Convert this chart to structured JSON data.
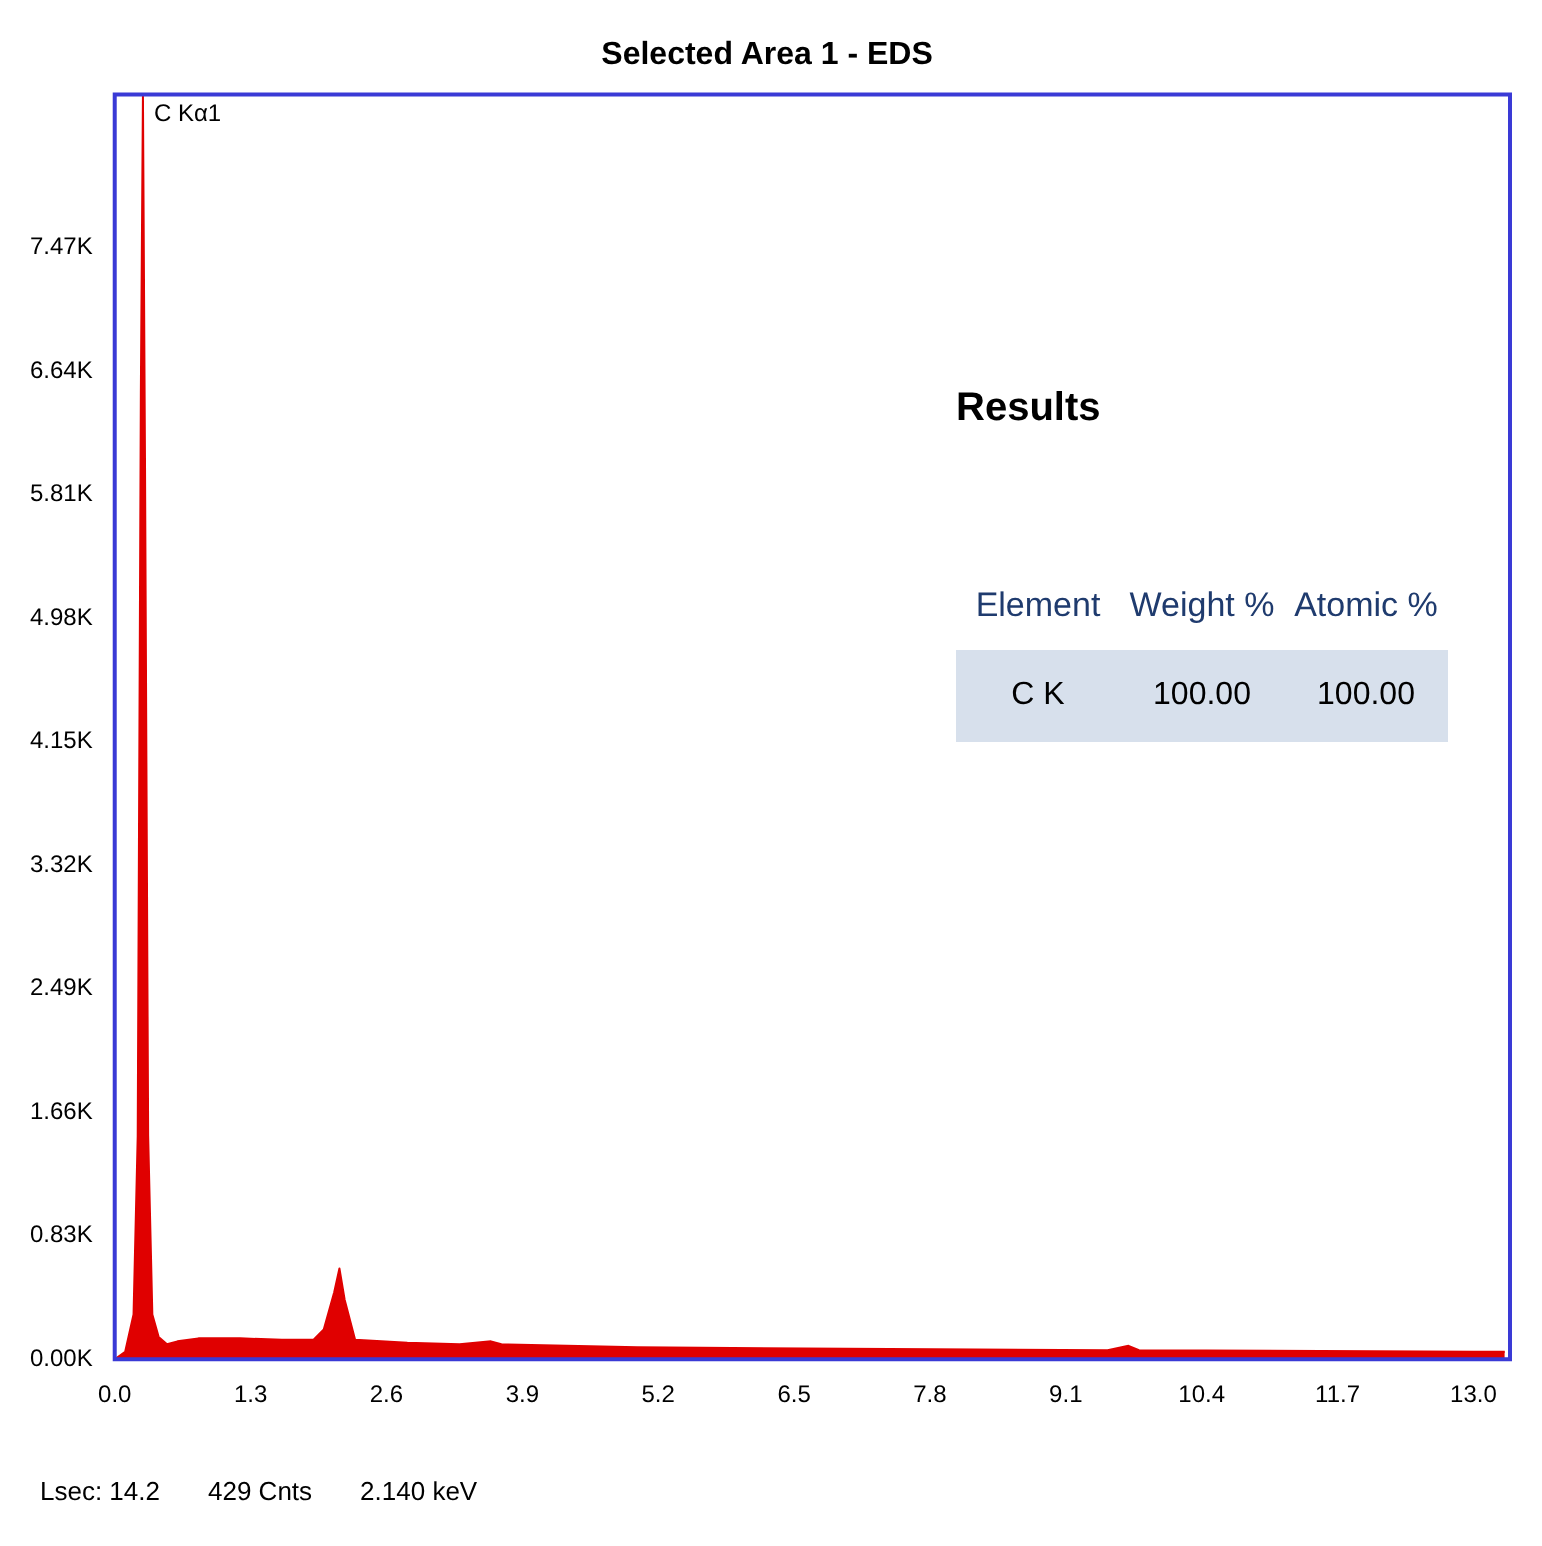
{
  "chart_data": {
    "type": "area",
    "title": "Selected Area 1 - EDS",
    "x": [
      0,
      0.1,
      0.18,
      0.22,
      0.25,
      0.27,
      0.29,
      0.32,
      0.36,
      0.42,
      0.5,
      0.6,
      0.8,
      1.2,
      1.6,
      1.9,
      2.0,
      2.1,
      2.15,
      2.2,
      2.3,
      2.8,
      3.3,
      3.6,
      3.7,
      5,
      7,
      9.5,
      9.7,
      9.8,
      13,
      13.3
    ],
    "series": [
      {
        "color": "#e00000",
        "values": [
          0,
          0.05,
          0.3,
          1.5,
          6.5,
          8.5,
          6.0,
          1.5,
          0.3,
          0.15,
          0.1,
          0.12,
          0.14,
          0.14,
          0.13,
          0.13,
          0.2,
          0.45,
          0.61,
          0.4,
          0.13,
          0.11,
          0.1,
          0.12,
          0.1,
          0.08,
          0.07,
          0.06,
          0.09,
          0.06,
          0.05,
          0.05
        ]
      }
    ],
    "xlim": [
      0,
      13.35
    ],
    "xticks": [
      {
        "value": 0,
        "label": "0.0"
      },
      1.3,
      2.6,
      3.9,
      5.2,
      6.5,
      7.8,
      9.1,
      10.4,
      11.7,
      {
        "value": 13,
        "label": "13.0"
      }
    ],
    "ylim": [
      0,
      8.5
    ],
    "yticks": [
      {
        "value": 0,
        "label": "0.00K"
      },
      {
        "value": 0.83,
        "label": "0.83K"
      },
      {
        "value": 1.66,
        "label": "1.66K"
      },
      {
        "value": 2.49,
        "label": "2.49K"
      },
      {
        "value": 3.32,
        "label": "3.32K"
      },
      {
        "value": 4.15,
        "label": "4.15K"
      },
      {
        "value": 4.98,
        "label": "4.98K"
      },
      {
        "value": 5.81,
        "label": "5.81K"
      },
      {
        "value": 6.64,
        "label": "6.64K"
      },
      {
        "value": 7.47,
        "label": "7.47K"
      }
    ],
    "grid": false,
    "legend": false,
    "marker": "none",
    "annotations": [
      {
        "text": "C Kα1",
        "x": 0.26,
        "y": 8.5
      },
      "Results",
      "Element",
      "Weight %",
      "Atomic %",
      "C K",
      "100.00",
      "100.00",
      "Lsec: 14.2",
      "429 Cnts",
      "2.140 keV"
    ]
  }
}
